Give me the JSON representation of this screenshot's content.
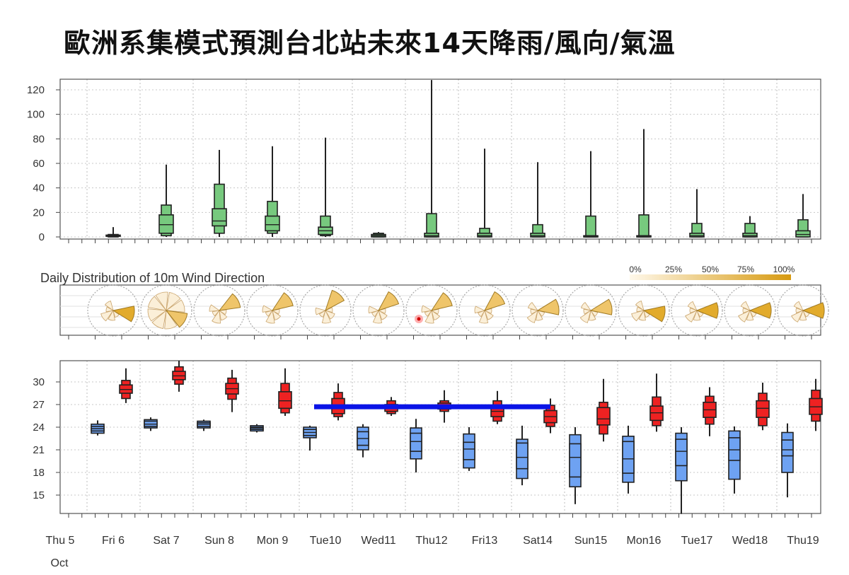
{
  "title": "歐洲系集模式預測台北站未來14天降雨/風向/氣溫",
  "chart_data": [
    {
      "id": "rain",
      "type": "boxplot",
      "ylim": [
        0,
        128
      ],
      "yticks": [
        0,
        20,
        40,
        60,
        80,
        100,
        120
      ],
      "color": "#77c97e",
      "days": [
        "Fri 6",
        "Sat 7",
        "Sun 8",
        "Mon 9",
        "Tue10",
        "Wed11",
        "Thu12",
        "Fri13",
        "Sat14",
        "Sun15",
        "Mon16",
        "Tue17",
        "Wed18",
        "Thu19"
      ],
      "boxes": [
        {
          "min": 0,
          "q10": 0,
          "q25": 0.5,
          "med": 1,
          "q75": 1.5,
          "q90": 2,
          "max": 8
        },
        {
          "min": 0,
          "q10": 1,
          "q25": 3,
          "med": 10,
          "q75": 18,
          "q90": 26,
          "max": 59
        },
        {
          "min": 0,
          "q10": 3,
          "q25": 9,
          "med": 13,
          "q75": 23,
          "q90": 43,
          "max": 71
        },
        {
          "min": 0,
          "q10": 3,
          "q25": 5,
          "med": 10,
          "q75": 17,
          "q90": 29,
          "max": 74
        },
        {
          "min": 0,
          "q10": 1,
          "q25": 2,
          "med": 5,
          "q75": 8,
          "q90": 17,
          "max": 81
        },
        {
          "min": 0,
          "q10": 0,
          "q25": 0,
          "med": 1,
          "q75": 2,
          "q90": 3,
          "max": 4
        },
        {
          "min": 0,
          "q10": 0,
          "q25": 0,
          "med": 1,
          "q75": 3,
          "q90": 19,
          "max": 128
        },
        {
          "min": 0,
          "q10": 0,
          "q25": 0,
          "med": 1,
          "q75": 3,
          "q90": 7,
          "max": 72
        },
        {
          "min": 0,
          "q10": 0,
          "q25": 0,
          "med": 1,
          "q75": 3,
          "q90": 10,
          "max": 61
        },
        {
          "min": 0,
          "q10": 0,
          "q25": 0,
          "med": 0,
          "q75": 1,
          "q90": 17,
          "max": 70
        },
        {
          "min": 0,
          "q10": 0,
          "q25": 0,
          "med": 0,
          "q75": 1,
          "q90": 18,
          "max": 88
        },
        {
          "min": 0,
          "q10": 0,
          "q25": 0,
          "med": 1,
          "q75": 3,
          "q90": 11,
          "max": 39
        },
        {
          "min": 0,
          "q10": 0,
          "q25": 0,
          "med": 1,
          "q75": 3,
          "q90": 11,
          "max": 17
        },
        {
          "min": 0,
          "q10": 0,
          "q25": 0,
          "med": 2,
          "q75": 5,
          "q90": 14,
          "max": 35
        }
      ]
    },
    {
      "id": "wind",
      "type": "windrose",
      "title": "Daily Distribution of 10m Wind Direction",
      "legend": [
        "0%",
        "25%",
        "50%",
        "75%",
        "100%"
      ],
      "days": [
        "Thu 5",
        "Fri 6",
        "Sat 7",
        "Sun 8",
        "Mon 9",
        "Tue10",
        "Wed11",
        "Thu12",
        "Fri13",
        "Sat14",
        "Sun15",
        "Mon16",
        "Tue17",
        "Wed18",
        "Thu19"
      ],
      "dominant_direction_deg": [
        null,
        100,
        120,
        60,
        55,
        40,
        50,
        55,
        50,
        80,
        80,
        100,
        90,
        90,
        90
      ]
    },
    {
      "id": "temperature",
      "type": "boxplot",
      "ylim": [
        12.5,
        32.5
      ],
      "yticks": [
        15,
        18,
        21,
        24,
        27,
        30
      ],
      "min_color": "#6ea2f2",
      "max_color": "#ee2222",
      "days": [
        "Fri 6",
        "Sat 7",
        "Sun 8",
        "Mon 9",
        "Tue10",
        "Wed11",
        "Thu12",
        "Fri13",
        "Sat14",
        "Sun15",
        "Mon16",
        "Tue17",
        "Wed18",
        "Thu19"
      ],
      "min_boxes": [
        {
          "min": 22.9,
          "q10": 23.2,
          "q25": 23.5,
          "med": 23.8,
          "q75": 24.1,
          "q90": 24.4,
          "max": 24.9
        },
        {
          "min": 23.5,
          "q10": 23.9,
          "q25": 24.1,
          "med": 24.4,
          "q75": 24.8,
          "q90": 25.0,
          "max": 25.3
        },
        {
          "min": 23.5,
          "q10": 23.9,
          "q25": 24.1,
          "med": 24.4,
          "q75": 24.6,
          "q90": 24.8,
          "max": 25.0
        },
        {
          "min": 23.3,
          "q10": 23.5,
          "q25": 23.7,
          "med": 23.9,
          "q75": 24.0,
          "q90": 24.2,
          "max": 24.4
        },
        {
          "min": 20.9,
          "q10": 22.6,
          "q25": 22.9,
          "med": 23.3,
          "q75": 23.7,
          "q90": 24.0,
          "max": 24.2
        },
        {
          "min": 20.0,
          "q10": 21.0,
          "q25": 21.6,
          "med": 22.5,
          "q75": 23.4,
          "q90": 24.0,
          "max": 24.4
        },
        {
          "min": 18.0,
          "q10": 19.8,
          "q25": 20.8,
          "med": 22.1,
          "q75": 23.2,
          "q90": 23.9,
          "max": 25.1
        },
        {
          "min": 18.2,
          "q10": 18.6,
          "q25": 19.7,
          "med": 21.1,
          "q75": 22.0,
          "q90": 23.1,
          "max": 24.0
        },
        {
          "min": 16.3,
          "q10": 17.2,
          "q25": 18.5,
          "med": 20.0,
          "q75": 21.9,
          "q90": 22.4,
          "max": 24.2
        },
        {
          "min": 13.8,
          "q10": 16.1,
          "q25": 17.4,
          "med": 20.0,
          "q75": 21.8,
          "q90": 23.0,
          "max": 24.0
        },
        {
          "min": 15.2,
          "q10": 16.7,
          "q25": 17.9,
          "med": 19.8,
          "q75": 22.1,
          "q90": 22.8,
          "max": 24.2
        },
        {
          "min": 12.5,
          "q10": 16.9,
          "q25": 18.9,
          "med": 20.8,
          "q75": 22.4,
          "q90": 23.2,
          "max": 24.0
        },
        {
          "min": 15.2,
          "q10": 17.1,
          "q25": 19.6,
          "med": 21.0,
          "q75": 22.6,
          "q90": 23.5,
          "max": 24.1
        },
        {
          "min": 14.7,
          "q10": 18.0,
          "q25": 20.2,
          "med": 21.0,
          "q75": 22.3,
          "q90": 23.3,
          "max": 24.5
        }
      ],
      "max_boxes": [
        {
          "min": 27.2,
          "q10": 27.8,
          "q25": 28.5,
          "med": 29.0,
          "q75": 29.6,
          "q90": 30.2,
          "max": 31.8
        },
        {
          "min": 28.7,
          "q10": 29.7,
          "q25": 30.3,
          "med": 30.8,
          "q75": 31.4,
          "q90": 32.0,
          "max": 32.8
        },
        {
          "min": 26.0,
          "q10": 27.7,
          "q25": 28.4,
          "med": 29.1,
          "q75": 29.8,
          "q90": 30.5,
          "max": 31.6
        },
        {
          "min": 25.5,
          "q10": 25.9,
          "q25": 26.5,
          "med": 27.5,
          "q75": 28.7,
          "q90": 29.8,
          "max": 31.8
        },
        {
          "min": 24.9,
          "q10": 25.4,
          "q25": 25.8,
          "med": 26.7,
          "q75": 27.8,
          "q90": 28.6,
          "max": 29.8
        },
        {
          "min": 25.5,
          "q10": 25.8,
          "q25": 26.1,
          "med": 26.5,
          "q75": 27.0,
          "q90": 27.5,
          "max": 28.0
        },
        {
          "min": 24.6,
          "q10": 26.1,
          "q25": 26.4,
          "med": 26.8,
          "q75": 27.2,
          "q90": 27.5,
          "max": 28.9
        },
        {
          "min": 24.4,
          "q10": 24.8,
          "q25": 25.4,
          "med": 26.1,
          "q75": 26.8,
          "q90": 27.5,
          "max": 28.8
        },
        {
          "min": 23.2,
          "q10": 24.1,
          "q25": 24.6,
          "med": 25.4,
          "q75": 26.2,
          "q90": 26.9,
          "max": 27.8
        },
        {
          "min": 22.1,
          "q10": 23.1,
          "q25": 24.3,
          "med": 25.1,
          "q75": 26.6,
          "q90": 27.3,
          "max": 30.4
        },
        {
          "min": 23.4,
          "q10": 24.2,
          "q25": 24.9,
          "med": 25.9,
          "q75": 26.8,
          "q90": 28.0,
          "max": 31.1
        },
        {
          "min": 22.8,
          "q10": 24.4,
          "q25": 25.3,
          "med": 26.3,
          "q75": 27.3,
          "q90": 28.1,
          "max": 29.3
        },
        {
          "min": 23.6,
          "q10": 24.2,
          "q25": 25.3,
          "med": 26.5,
          "q75": 27.5,
          "q90": 28.5,
          "max": 29.9
        },
        {
          "min": 23.5,
          "q10": 24.8,
          "q25": 25.7,
          "med": 26.7,
          "q75": 27.8,
          "q90": 28.9,
          "max": 30.4
        }
      ],
      "annotation_bar": {
        "from_day": "Tue10",
        "to_day": "Sat14",
        "y": 26.8,
        "color": "#0a14e6"
      }
    }
  ],
  "x_axis": {
    "labels": [
      "Thu 5",
      "Fri 6",
      "Sat 7",
      "Sun 8",
      "Mon 9",
      "Tue10",
      "Wed11",
      "Thu12",
      "Fri13",
      "Sat14",
      "Sun15",
      "Mon16",
      "Tue17",
      "Wed18",
      "Thu19"
    ],
    "weekend_color": "#e8231b",
    "normal_color": "#333333",
    "weekend_labels": [
      "Sun 8",
      "Sun15"
    ],
    "month": "Oct"
  }
}
